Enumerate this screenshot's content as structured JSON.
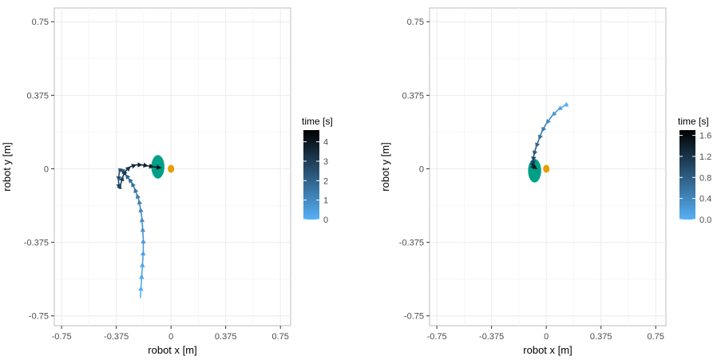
{
  "chart_data": [
    {
      "type": "scatter",
      "title": "",
      "xlabel": "robot x [m]",
      "ylabel": "robot y [m]",
      "xlim": [
        -0.8,
        0.82
      ],
      "ylim": [
        -0.8,
        0.82
      ],
      "x_ticks": [
        -0.75,
        -0.375,
        0,
        0.375,
        0.75
      ],
      "x_tick_labels": [
        "-0.75",
        "-0.375",
        "0",
        "0.375",
        "0.75"
      ],
      "y_ticks": [
        -0.75,
        -0.375,
        0,
        0.375,
        0.75
      ],
      "y_tick_labels": [
        "-0.75",
        "-0.375",
        "0",
        "0.375",
        "0.75"
      ],
      "grid": true,
      "legend": {
        "title": "time [s]",
        "placement": "right",
        "range": [
          0,
          4.6
        ],
        "ticks": [
          0,
          1,
          2,
          3,
          4
        ],
        "tick_labels": [
          "0",
          "1",
          "2",
          "3",
          "4"
        ],
        "color_low": "#56B1F7",
        "color_high": "#000000"
      },
      "ellipse": {
        "cx": -0.09,
        "cy": 0.01,
        "rx": 0.045,
        "ry": 0.06,
        "color": "#00a087"
      },
      "target": {
        "x": 0.0,
        "y": 0.0,
        "color": "#e69f00"
      },
      "path_x": [
        -0.21,
        -0.205,
        -0.2,
        -0.195,
        -0.19,
        -0.19,
        -0.195,
        -0.2,
        -0.21,
        -0.22,
        -0.235,
        -0.25,
        -0.27,
        -0.29,
        -0.31,
        -0.33,
        -0.345,
        -0.355,
        -0.36,
        -0.355,
        -0.345,
        -0.33,
        -0.31,
        -0.28,
        -0.24,
        -0.2,
        -0.16,
        -0.12,
        -0.07
      ],
      "path_y": [
        -0.66,
        -0.6,
        -0.54,
        -0.48,
        -0.42,
        -0.36,
        -0.3,
        -0.25,
        -0.2,
        -0.16,
        -0.13,
        -0.1,
        -0.07,
        -0.05,
        -0.03,
        -0.01,
        0.0,
        -0.02,
        -0.06,
        -0.1,
        -0.08,
        -0.04,
        -0.01,
        0.01,
        0.02,
        0.02,
        0.015,
        0.01,
        0.005
      ],
      "time_s": [
        0,
        0.15,
        0.3,
        0.45,
        0.6,
        0.75,
        0.9,
        1.05,
        1.2,
        1.35,
        1.5,
        1.65,
        1.8,
        1.95,
        2.1,
        2.25,
        2.4,
        2.55,
        2.7,
        2.85,
        3.0,
        3.15,
        3.3,
        3.45,
        3.6,
        3.75,
        3.9,
        4.05,
        4.4
      ]
    },
    {
      "type": "scatter",
      "title": "",
      "xlabel": "robot x [m]",
      "ylabel": "robot y [m]",
      "xlim": [
        -0.8,
        0.82
      ],
      "ylim": [
        -0.8,
        0.82
      ],
      "x_ticks": [
        -0.75,
        -0.375,
        0,
        0.375,
        0.75
      ],
      "x_tick_labels": [
        "-0.75",
        "-0.375",
        "0",
        "0.375",
        "0.75"
      ],
      "y_ticks": [
        -0.75,
        -0.375,
        0,
        0.375,
        0.75
      ],
      "y_tick_labels": [
        "-0.75",
        "-0.375",
        "0",
        "0.375",
        "0.75"
      ],
      "grid": true,
      "legend": {
        "title": "time [s]",
        "placement": "right",
        "range": [
          0,
          1.7
        ],
        "ticks": [
          0.0,
          0.4,
          0.8,
          1.2,
          1.6
        ],
        "tick_labels": [
          "0.0",
          "0.4",
          "0.8",
          "1.2",
          "1.6"
        ],
        "color_low": "#56B1F7",
        "color_high": "#000000"
      },
      "ellipse": {
        "cx": -0.08,
        "cy": -0.01,
        "rx": 0.045,
        "ry": 0.06,
        "color": "#00a087"
      },
      "target": {
        "x": 0.0,
        "y": 0.0,
        "color": "#e69f00"
      },
      "path_x": [
        0.15,
        0.12,
        0.08,
        0.04,
        0.0,
        -0.03,
        -0.05,
        -0.07,
        -0.085,
        -0.09,
        -0.09,
        -0.085,
        -0.075,
        -0.065
      ],
      "path_y": [
        0.33,
        0.32,
        0.3,
        0.27,
        0.23,
        0.19,
        0.15,
        0.11,
        0.07,
        0.04,
        0.02,
        0.01,
        0.005,
        0.0
      ],
      "time_s": [
        0,
        0.12,
        0.24,
        0.36,
        0.48,
        0.6,
        0.72,
        0.84,
        0.96,
        1.08,
        1.2,
        1.32,
        1.44,
        1.6
      ]
    }
  ]
}
